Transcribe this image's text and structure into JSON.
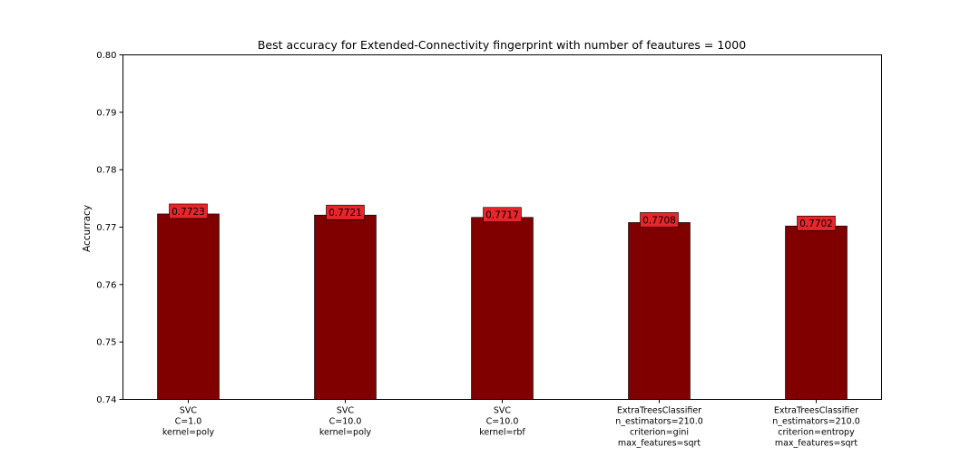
{
  "chart_data": {
    "type": "bar",
    "title": "Best accuracy for Extended-Connectivity fingerprint with number of feautures = 1000",
    "xlabel": "",
    "ylabel": "Accurracy",
    "ylim": [
      0.74,
      0.8
    ],
    "yticks": [
      "0.74",
      "0.75",
      "0.76",
      "0.77",
      "0.78",
      "0.79",
      "0.80"
    ],
    "grid": false,
    "categories": [
      [
        "SVC",
        "C=1.0",
        "kernel=poly"
      ],
      [
        "SVC",
        "C=10.0",
        "kernel=poly"
      ],
      [
        "SVC",
        "C=10.0",
        "kernel=rbf"
      ],
      [
        "ExtraTreesClassifier",
        "n_estimators=210.0",
        "criterion=gini",
        "max_features=sqrt"
      ],
      [
        "ExtraTreesClassifier",
        "n_estimators=210.0",
        "criterion=entropy",
        "max_features=sqrt"
      ]
    ],
    "values": [
      0.7723,
      0.7721,
      0.7717,
      0.7708,
      0.7702
    ],
    "value_labels": [
      "0.7723",
      "0.7721",
      "0.7717",
      "0.7708",
      "0.7702"
    ],
    "colors": {
      "bar": "#800000",
      "label_box": "#e8252b",
      "axis": "#000000"
    }
  }
}
